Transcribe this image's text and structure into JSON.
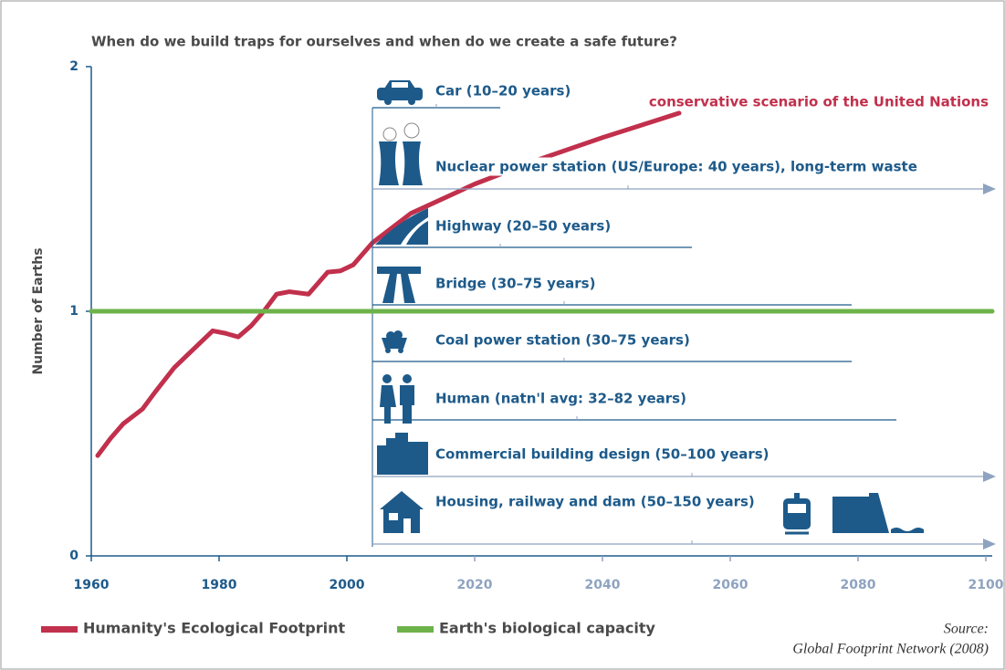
{
  "chart_data": {
    "type": "line",
    "title": "When do we build traps for ourselves and when do we create a safe future?",
    "y_label": "Number of Earths",
    "annotation": "conservative scenario of the United Nations",
    "source": [
      "Source:",
      "Global Footprint Network (2008)"
    ],
    "xlim": [
      1960,
      2101
    ],
    "xticks": [
      1960,
      1980,
      2000,
      2020,
      2040,
      2060,
      2080,
      2100
    ],
    "ylim": [
      0,
      2
    ],
    "yticks": [
      0,
      1,
      2
    ],
    "series": [
      {
        "name": "Humanity's Ecological Footprint",
        "color": "#c1304c",
        "x": [
          1961,
          1963,
          1965,
          1968,
          1970,
          1973,
          1975,
          1977,
          1979,
          1981,
          1983,
          1985,
          1987,
          1989,
          1991,
          1994,
          1997,
          1999,
          2001,
          2004,
          2010,
          2020,
          2030,
          2040,
          2052
        ],
        "values": [
          0.41,
          0.48,
          0.54,
          0.6,
          0.67,
          0.77,
          0.82,
          0.87,
          0.92,
          0.91,
          0.895,
          0.94,
          1.0,
          1.07,
          1.08,
          1.07,
          1.16,
          1.165,
          1.19,
          1.28,
          1.4,
          1.52,
          1.62,
          1.71,
          1.81
        ]
      },
      {
        "name": "Earth's biological capacity",
        "color": "#6db34a",
        "x": [
          1960,
          2101
        ],
        "values": [
          1,
          1
        ]
      }
    ],
    "timeline": {
      "start": 2004,
      "items": [
        {
          "label": "Car (10–20 years)",
          "years": [
            10,
            20
          ],
          "arrow": false
        },
        {
          "label": "Nuclear power station (US/Europe: 40 years), long-term waste",
          "years": [
            40
          ],
          "arrow": true
        },
        {
          "label": "Highway (20–50 years)",
          "years": [
            20,
            50
          ],
          "arrow": false
        },
        {
          "label": "Bridge (30–75 years)",
          "years": [
            30,
            75
          ],
          "arrow": false
        },
        {
          "label": "Coal power station (30–75 years)",
          "years": [
            30,
            75
          ],
          "arrow": false
        },
        {
          "label": "Human (natn'l avg: 32–82 years)",
          "years": [
            32,
            82
          ],
          "arrow": false
        },
        {
          "label": "Commercial building design (50–100 years)",
          "years": [
            50,
            100
          ],
          "arrow": true
        },
        {
          "label": "Housing, railway and dam (50–150 years)",
          "years": [
            50,
            150
          ],
          "arrow": true
        }
      ]
    }
  }
}
